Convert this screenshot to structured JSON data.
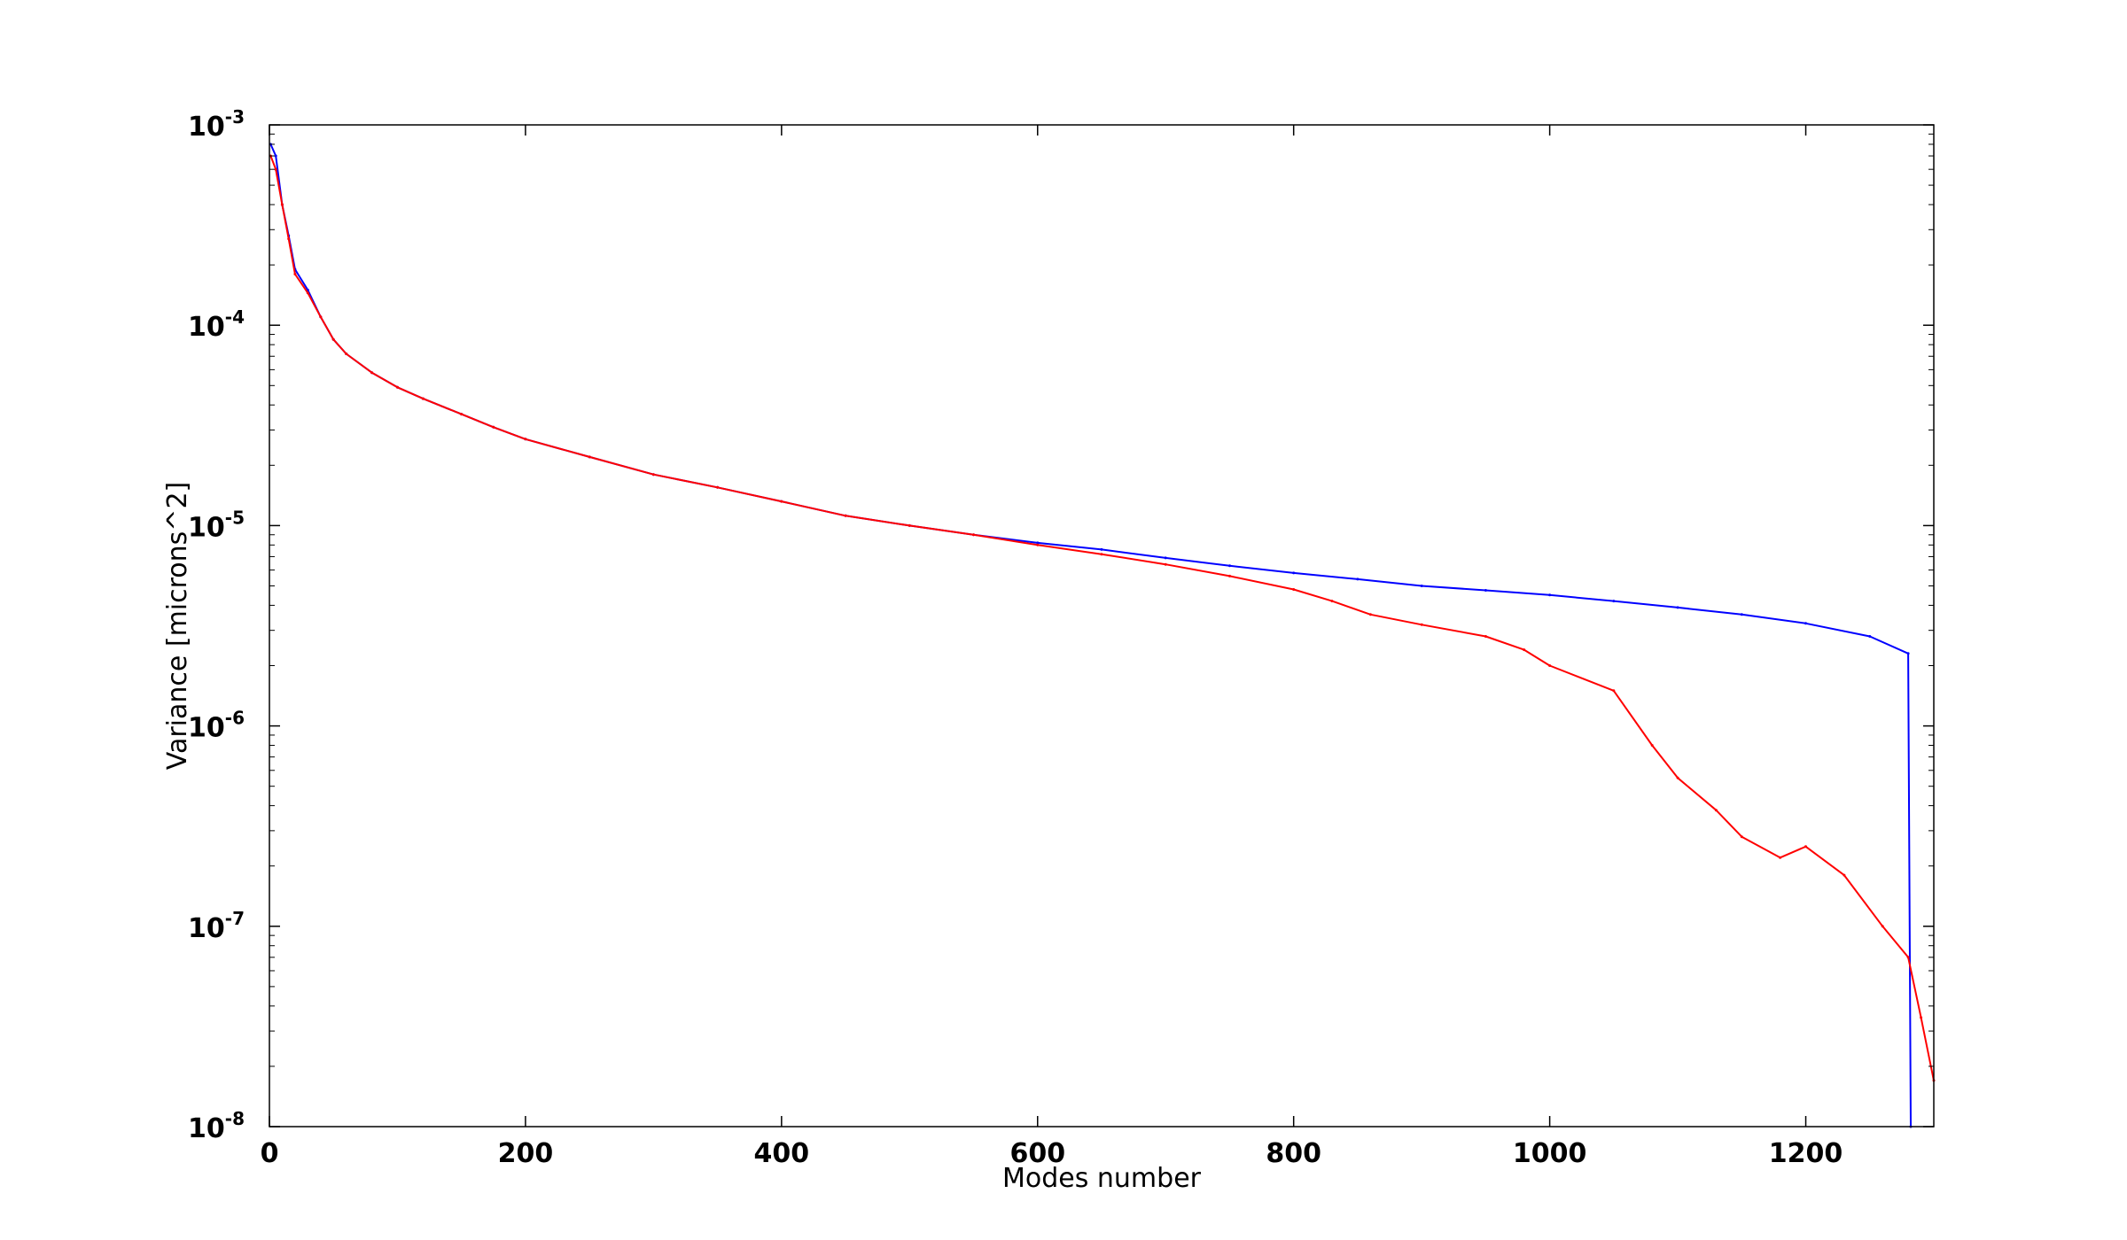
{
  "chart_data": {
    "type": "line",
    "title": "",
    "xlabel": "Modes number",
    "ylabel": "Variance [microns^2]",
    "xlim": [
      0,
      1300
    ],
    "ylim": [
      1e-08,
      0.001
    ],
    "yscale": "log",
    "grid": false,
    "legend": "none",
    "x_ticks": [
      {
        "value": 0,
        "label": "0"
      },
      {
        "value": 200,
        "label": "200"
      },
      {
        "value": 400,
        "label": "400"
      },
      {
        "value": 600,
        "label": "600"
      },
      {
        "value": 800,
        "label": "800"
      },
      {
        "value": 1000,
        "label": "1000"
      },
      {
        "value": 1200,
        "label": "1200"
      }
    ],
    "y_ticks": [
      {
        "value": 0.001,
        "base": "10",
        "exp": "-3"
      },
      {
        "value": 0.0001,
        "base": "10",
        "exp": "-4"
      },
      {
        "value": 1e-05,
        "base": "10",
        "exp": "-5"
      },
      {
        "value": 1e-06,
        "base": "10",
        "exp": "-6"
      },
      {
        "value": 1e-07,
        "base": "10",
        "exp": "-7"
      },
      {
        "value": 1e-08,
        "base": "10",
        "exp": "-8"
      }
    ],
    "series": [
      {
        "color": "#0000ff",
        "x": [
          1,
          5,
          10,
          15,
          20,
          30,
          40,
          50,
          60,
          80,
          100,
          120,
          150,
          175,
          200,
          250,
          300,
          350,
          400,
          450,
          500,
          550,
          600,
          650,
          700,
          750,
          800,
          850,
          900,
          950,
          1000,
          1050,
          1100,
          1150,
          1200,
          1250,
          1280,
          1282
        ],
        "y": [
          0.0008,
          0.0007,
          0.0004,
          0.00028,
          0.00019,
          0.00015,
          0.00011,
          8.5e-05,
          7.2e-05,
          5.8e-05,
          4.9e-05,
          4.3e-05,
          3.6e-05,
          3.1e-05,
          2.7e-05,
          2.2e-05,
          1.8e-05,
          1.55e-05,
          1.32e-05,
          1.12e-05,
          1e-05,
          9e-06,
          8.2e-06,
          7.6e-06,
          6.9e-06,
          6.3e-06,
          5.8e-06,
          5.4e-06,
          5e-06,
          4.75e-06,
          4.5e-06,
          4.2e-06,
          3.9e-06,
          3.6e-06,
          3.25e-06,
          2.8e-06,
          2.3e-06,
          1e-08
        ]
      },
      {
        "color": "#ff0000",
        "x": [
          1,
          5,
          10,
          15,
          20,
          30,
          40,
          50,
          60,
          80,
          100,
          120,
          150,
          175,
          200,
          250,
          300,
          350,
          400,
          450,
          500,
          550,
          600,
          650,
          700,
          750,
          800,
          830,
          860,
          900,
          950,
          980,
          1000,
          1050,
          1080,
          1100,
          1130,
          1150,
          1180,
          1200,
          1230,
          1260,
          1280,
          1290,
          1300
        ],
        "y": [
          0.0007,
          0.0006,
          0.0004,
          0.00027,
          0.00018,
          0.000145,
          0.00011,
          8.5e-05,
          7.2e-05,
          5.8e-05,
          4.9e-05,
          4.3e-05,
          3.6e-05,
          3.1e-05,
          2.7e-05,
          2.2e-05,
          1.8e-05,
          1.55e-05,
          1.32e-05,
          1.12e-05,
          1e-05,
          9e-06,
          8e-06,
          7.2e-06,
          6.4e-06,
          5.6e-06,
          4.8e-06,
          4.2e-06,
          3.6e-06,
          3.2e-06,
          2.8e-06,
          2.4e-06,
          2e-06,
          1.5e-06,
          8e-07,
          5.5e-07,
          3.8e-07,
          2.8e-07,
          2.2e-07,
          2.5e-07,
          1.8e-07,
          1e-07,
          7e-08,
          3.5e-08,
          1.7e-08
        ]
      }
    ]
  }
}
